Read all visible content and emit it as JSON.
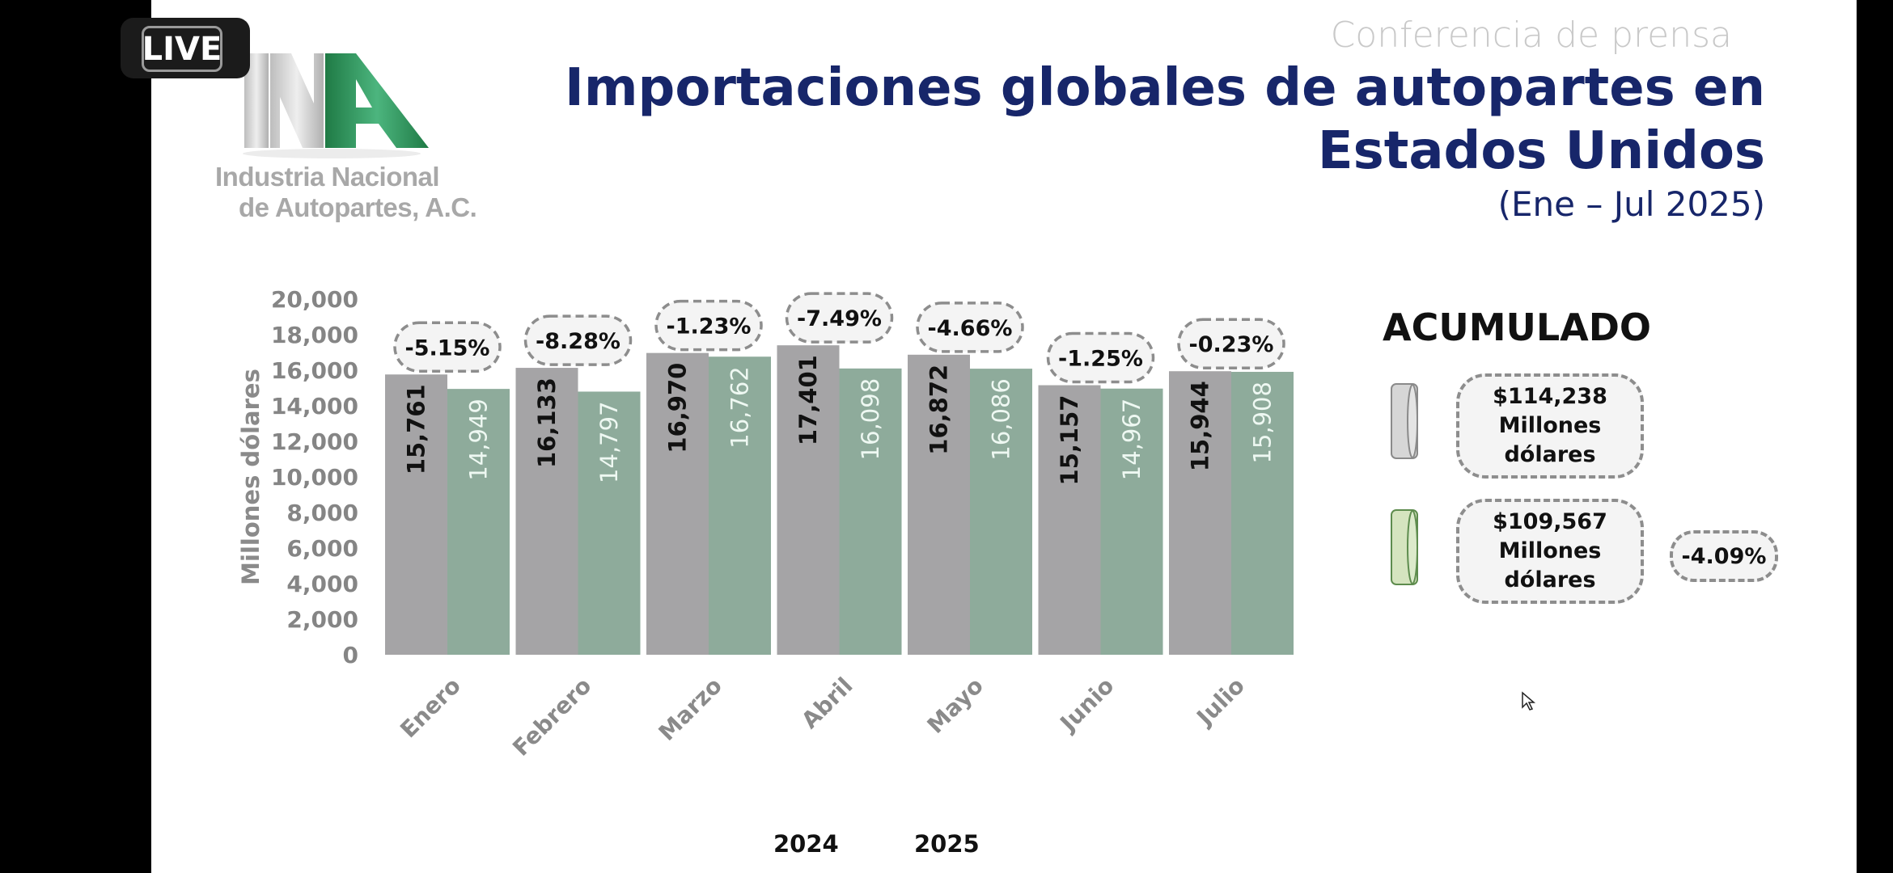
{
  "live_badge": "LIVE",
  "logo": {
    "line1": "Industria Nacional",
    "line2": "de Autopartes, A.C.",
    "mark": "INA"
  },
  "header": {
    "kicker": "Conferencia de prensa",
    "title_line1": "Importaciones globales de autopartes en",
    "title_line2": "Estados Unidos",
    "subtitle": "(Ene – Jul 2025)"
  },
  "colors": {
    "series_2024": "#a5a4a6",
    "series_2025": "#8eab9b",
    "title": "#17266a",
    "logo_green": "#2e8b57"
  },
  "chart_data": {
    "type": "bar",
    "title": "Importaciones globales de autopartes en Estados Unidos",
    "ylabel": "Millones dólares",
    "xlabel": "",
    "ylim": [
      0,
      20000
    ],
    "yticks": [
      "0",
      "2,000",
      "4,000",
      "6,000",
      "8,000",
      "10,000",
      "12,000",
      "14,000",
      "16,000",
      "18,000",
      "20,000"
    ],
    "ytick_values": [
      0,
      2000,
      4000,
      6000,
      8000,
      10000,
      12000,
      14000,
      16000,
      18000,
      20000
    ],
    "categories": [
      "Enero",
      "Febrero",
      "Marzo",
      "Abril",
      "Mayo",
      "Junio",
      "Julio"
    ],
    "series": [
      {
        "name": "2024",
        "values": [
          15761,
          16133,
          16970,
          17401,
          16872,
          15157,
          15944
        ],
        "labels": [
          "15,761",
          "16,133",
          "16,970",
          "17,401",
          "16,872",
          "15,157",
          "15,944"
        ]
      },
      {
        "name": "2025",
        "values": [
          14949,
          14797,
          16762,
          16098,
          16086,
          14967,
          15908
        ],
        "labels": [
          "14,949",
          "14,797",
          "16,762",
          "16,098",
          "16,086",
          "14,967",
          "15,908"
        ]
      }
    ],
    "annotations": [
      "-5.15%",
      "-8.28%",
      "-1.23%",
      "-7.49%",
      "-4.66%",
      "-1.25%",
      "-0.23%"
    ],
    "legend": [
      "2024",
      "2025"
    ],
    "legend_position": "bottom",
    "grid": false
  },
  "summary": {
    "title": "ACUMULADO",
    "items": [
      {
        "amount": "$114,238",
        "unit1": "Millones",
        "unit2": "dólares"
      },
      {
        "amount": "$109,567",
        "unit1": "Millones",
        "unit2": "dólares"
      }
    ],
    "change": "-4.09%"
  }
}
